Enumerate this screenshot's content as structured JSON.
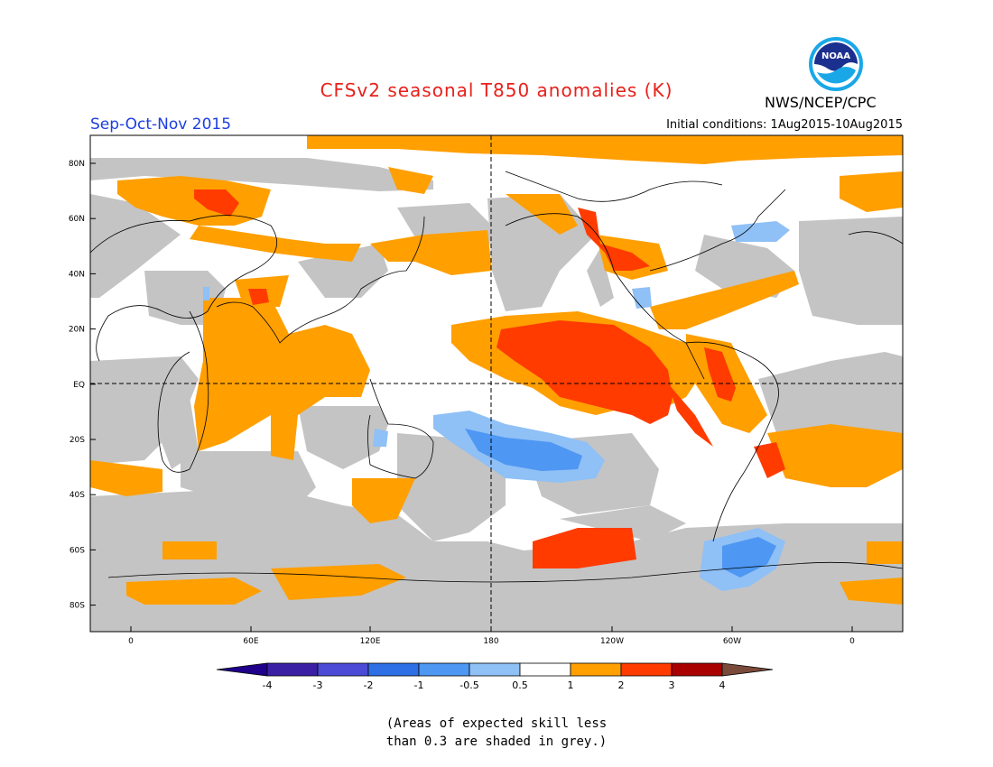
{
  "title": "CFSv2 seasonal T850 anomalies (K)",
  "season": "Sep-Oct-Nov 2015",
  "initial_conditions": "Initial conditions: 1Aug2015-10Aug2015",
  "agency": "NWS/NCEP/CPC",
  "logo_text": "NOAA",
  "lat_labels": [
    "80N",
    "60N",
    "40N",
    "20N",
    "EQ",
    "20S",
    "40S",
    "60S",
    "80S"
  ],
  "lon_labels": [
    "0",
    "60E",
    "120E",
    "180",
    "120W",
    "60W",
    "0"
  ],
  "colorbar": {
    "labels": [
      "-4",
      "-3",
      "-2",
      "-1",
      "-0.5",
      "0.5",
      "1",
      "2",
      "3",
      "4"
    ],
    "colors": [
      "#3a1fa4",
      "#4a4ad6",
      "#2f6fe6",
      "#4e97f2",
      "#8fc0f6",
      "#ffffff",
      "#ff9f00",
      "#ff3b00",
      "#a90000",
      "#c8a08e",
      "#7a4a3a",
      "#20008a"
    ]
  },
  "note_line1": "(Areas of expected skill less",
  "note_line2": "than 0.3 are shaded in grey.)"
}
